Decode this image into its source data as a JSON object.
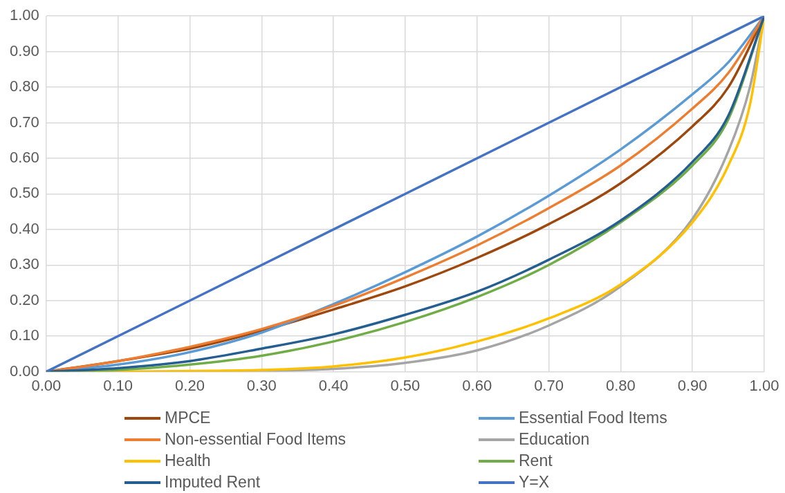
{
  "chart_data": {
    "type": "line",
    "xlim": [
      0,
      1
    ],
    "ylim": [
      0,
      1
    ],
    "xticks": [
      {
        "value": 0,
        "label": "0.00"
      },
      {
        "value": 0.1,
        "label": "0.10"
      },
      {
        "value": 0.2,
        "label": "0.20"
      },
      {
        "value": 0.3,
        "label": "0.30"
      },
      {
        "value": 0.4,
        "label": "0.40"
      },
      {
        "value": 0.5,
        "label": "0.50"
      },
      {
        "value": 0.6,
        "label": "0.60"
      },
      {
        "value": 0.7,
        "label": "0.70"
      },
      {
        "value": 0.8,
        "label": "0.80"
      },
      {
        "value": 0.9,
        "label": "0.90"
      },
      {
        "value": 1,
        "label": "1.00"
      }
    ],
    "yticks": [
      {
        "value": 0,
        "label": "0.00"
      },
      {
        "value": 0.1,
        "label": "0.10"
      },
      {
        "value": 0.2,
        "label": "0.20"
      },
      {
        "value": 0.3,
        "label": "0.30"
      },
      {
        "value": 0.4,
        "label": "0.40"
      },
      {
        "value": 0.5,
        "label": "0.50"
      },
      {
        "value": 0.6,
        "label": "0.60"
      },
      {
        "value": 0.7,
        "label": "0.70"
      },
      {
        "value": 0.8,
        "label": "0.80"
      },
      {
        "value": 0.9,
        "label": "0.90"
      },
      {
        "value": 1,
        "label": "1.00"
      }
    ],
    "grid": true,
    "legend": "bottom",
    "marker": "none",
    "line_style": "solid",
    "series": [
      {
        "name": "MPCE",
        "color": "#9e480e",
        "x": [
          0,
          0.1,
          0.2,
          0.3,
          0.4,
          0.5,
          0.6,
          0.7,
          0.8,
          0.9,
          0.95,
          1
        ],
        "values": [
          0,
          0.03,
          0.065,
          0.115,
          0.175,
          0.24,
          0.32,
          0.415,
          0.53,
          0.69,
          0.8,
          1
        ]
      },
      {
        "name": "Essential Food Items",
        "color": "#5b9bd5",
        "x": [
          0,
          0.1,
          0.2,
          0.3,
          0.4,
          0.5,
          0.6,
          0.7,
          0.8,
          0.9,
          0.95,
          1
        ],
        "values": [
          0,
          0.02,
          0.055,
          0.11,
          0.19,
          0.28,
          0.38,
          0.495,
          0.625,
          0.78,
          0.87,
          1
        ]
      },
      {
        "name": "Non-essential Food Items",
        "color": "#ed7d31",
        "x": [
          0,
          0.1,
          0.2,
          0.3,
          0.4,
          0.5,
          0.6,
          0.7,
          0.8,
          0.9,
          0.95,
          1
        ],
        "values": [
          0,
          0.03,
          0.07,
          0.12,
          0.185,
          0.265,
          0.355,
          0.46,
          0.58,
          0.74,
          0.84,
          1
        ]
      },
      {
        "name": "Education",
        "color": "#a5a5a5",
        "x": [
          0,
          0.2,
          0.3,
          0.4,
          0.5,
          0.6,
          0.7,
          0.8,
          0.9,
          0.95,
          0.98,
          1
        ],
        "values": [
          0,
          0,
          0.002,
          0.008,
          0.025,
          0.06,
          0.13,
          0.24,
          0.43,
          0.62,
          0.8,
          1
        ]
      },
      {
        "name": "Health",
        "color": "#ffc000",
        "x": [
          0,
          0.1,
          0.2,
          0.3,
          0.4,
          0.5,
          0.6,
          0.7,
          0.8,
          0.9,
          0.95,
          0.98,
          1
        ],
        "values": [
          0,
          0,
          0.002,
          0.005,
          0.015,
          0.04,
          0.085,
          0.15,
          0.245,
          0.42,
          0.58,
          0.75,
          1
        ]
      },
      {
        "name": "Rent",
        "color": "#70ad47",
        "x": [
          0,
          0.1,
          0.2,
          0.3,
          0.4,
          0.5,
          0.6,
          0.7,
          0.8,
          0.9,
          0.95,
          1
        ],
        "values": [
          0,
          0.005,
          0.02,
          0.045,
          0.085,
          0.14,
          0.21,
          0.3,
          0.42,
          0.58,
          0.71,
          1
        ]
      },
      {
        "name": "Imputed Rent",
        "color": "#255e91",
        "x": [
          0,
          0.1,
          0.2,
          0.3,
          0.4,
          0.5,
          0.6,
          0.7,
          0.8,
          0.9,
          0.95,
          1
        ],
        "values": [
          0,
          0.01,
          0.03,
          0.065,
          0.105,
          0.16,
          0.225,
          0.315,
          0.425,
          0.59,
          0.72,
          1
        ]
      },
      {
        "name": "Y=X",
        "color": "#4472c4",
        "x": [
          0,
          1
        ],
        "values": [
          0,
          1
        ]
      }
    ]
  }
}
